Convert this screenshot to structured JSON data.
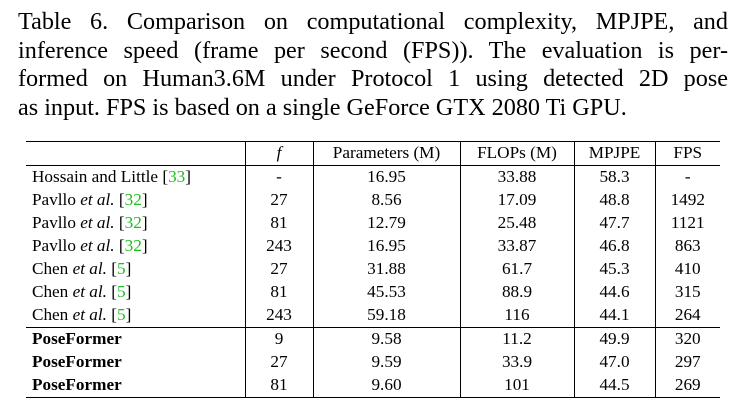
{
  "caption": {
    "lines": [
      "Table 6. Comparison on computational complexity, MPJPE, and",
      "inference speed (frame per second (FPS)). The evaluation is per-",
      "formed on Human3.6M under Protocol 1 using detected 2D pose",
      "as input. FPS is based on a single GeForce GTX 2080 Ti GPU."
    ]
  },
  "table": {
    "headers": [
      "",
      "f",
      "Parameters (M)",
      "FLOPs (M)",
      "MPJPE",
      "FPS"
    ],
    "rows": [
      {
        "name": "Hossain and Little",
        "etal": "",
        "cite": "33",
        "f": "-",
        "params": "16.95",
        "flops": "33.88",
        "mpjpe": "58.3",
        "fps": "-"
      },
      {
        "name": "Pavllo",
        "etal": "et al.",
        "cite": "32",
        "f": "27",
        "params": "8.56",
        "flops": "17.09",
        "mpjpe": "48.8",
        "fps": "1492"
      },
      {
        "name": "Pavllo",
        "etal": "et al.",
        "cite": "32",
        "f": "81",
        "params": "12.79",
        "flops": "25.48",
        "mpjpe": "47.7",
        "fps": "1121"
      },
      {
        "name": "Pavllo",
        "etal": "et al.",
        "cite": "32",
        "f": "243",
        "params": "16.95",
        "flops": "33.87",
        "mpjpe": "46.8",
        "fps": "863"
      },
      {
        "name": "Chen",
        "etal": "et al.",
        "cite": "5",
        "f": "27",
        "params": "31.88",
        "flops": "61.7",
        "mpjpe": "45.3",
        "fps": "410"
      },
      {
        "name": "Chen",
        "etal": "et al.",
        "cite": "5",
        "f": "81",
        "params": "45.53",
        "flops": "88.9",
        "mpjpe": "44.6",
        "fps": "315"
      },
      {
        "name": "Chen",
        "etal": "et al.",
        "cite": "5",
        "f": "243",
        "params": "59.18",
        "flops": "116",
        "mpjpe": "44.1",
        "fps": "264"
      },
      {
        "name": "PoseFormer",
        "etal": "",
        "cite": "",
        "f": "9",
        "params": "9.58",
        "flops": "11.2",
        "mpjpe": "49.9",
        "fps": "320"
      },
      {
        "name": "PoseFormer",
        "etal": "",
        "cite": "",
        "f": "27",
        "params": "9.59",
        "flops": "33.9",
        "mpjpe": "47.0",
        "fps": "297"
      },
      {
        "name": "PoseFormer",
        "etal": "",
        "cite": "",
        "f": "81",
        "params": "9.60",
        "flops": "101",
        "mpjpe": "44.5",
        "fps": "269"
      }
    ]
  },
  "colors": {
    "citation": "#1bbf1b",
    "text": "#000000"
  }
}
